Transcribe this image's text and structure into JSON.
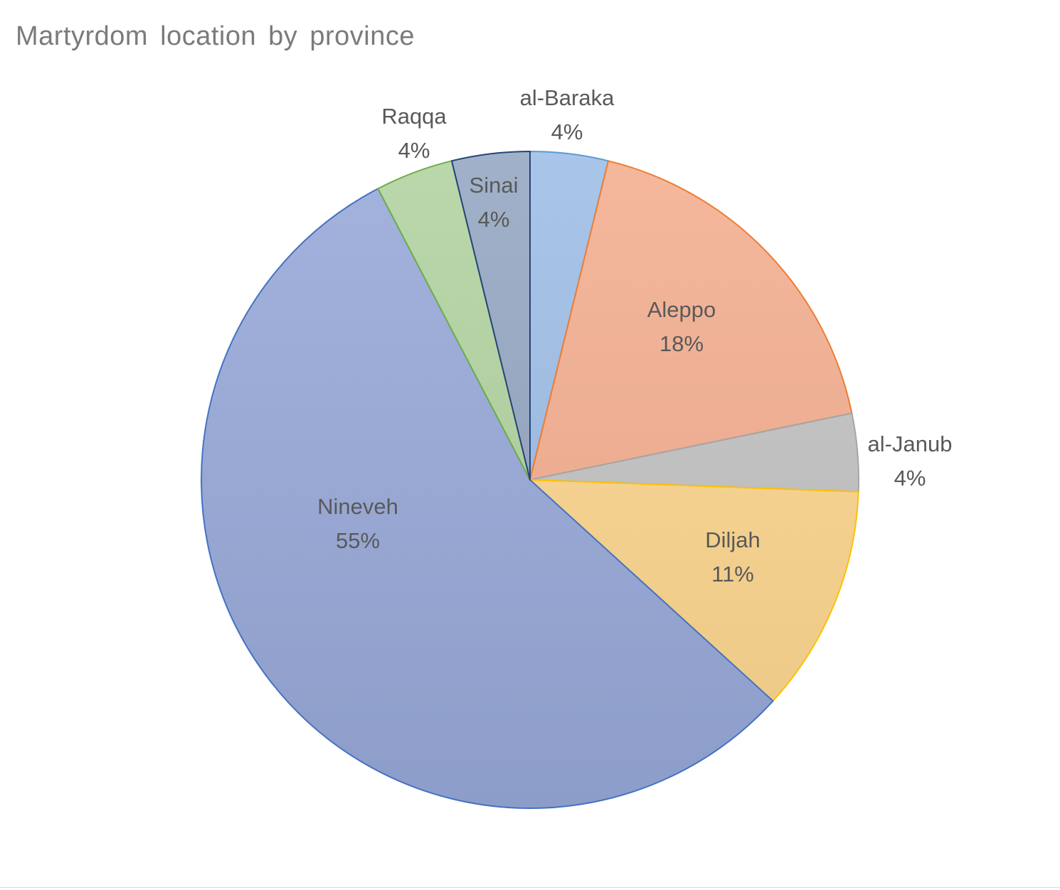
{
  "chart_data": {
    "type": "pie",
    "title": "Martyrdom location by province",
    "unit": "%",
    "slices": [
      {
        "name": "al-Baraka",
        "label": "al-Baraka",
        "pct_label": "4%",
        "value": 3.8,
        "color": "#9dbde6",
        "stroke": "#5b9bd5"
      },
      {
        "name": "Aleppo",
        "label": "Aleppo",
        "pct_label": "18%",
        "value": 17.8,
        "color": "#f4ae90",
        "stroke": "#ed7d31"
      },
      {
        "name": "al-Janub",
        "label": "al-Janub",
        "pct_label": "4%",
        "value": 3.8,
        "color": "#c3c3c3",
        "stroke": "#a5a5a5"
      },
      {
        "name": "Diljah",
        "label": "Diljah",
        "pct_label": "11%",
        "value": 11.1,
        "color": "#fdd68e",
        "stroke": "#ffc000"
      },
      {
        "name": "Nineveh",
        "label": "Nineveh",
        "pct_label": "55%",
        "value": 55.2,
        "color": "#98a9d8",
        "stroke": "#4472c4"
      },
      {
        "name": "Raqqa",
        "label": "Raqqa",
        "pct_label": "4%",
        "value": 3.8,
        "color": "#b1d39f",
        "stroke": "#70ad47"
      },
      {
        "name": "Sinai",
        "label": "Sinai",
        "pct_label": "4%",
        "value": 3.8,
        "color": "#94a6c2",
        "stroke": "#264478"
      }
    ]
  }
}
